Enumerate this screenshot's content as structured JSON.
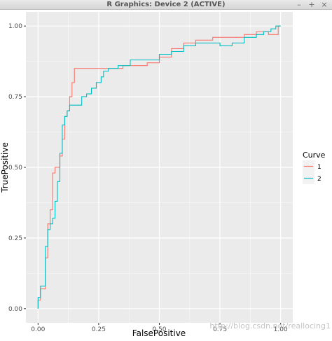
{
  "window": {
    "title": "R Graphics: Device 2 (ACTIVE)",
    "buttons": [
      "–",
      "+",
      "×"
    ]
  },
  "watermark": "http://blog.csdn.net/reallocing1",
  "colors": {
    "curve1": "#F8766D",
    "curve2": "#00BFC4",
    "panel": "#EBEBEB",
    "grid": "#FFFFFF"
  },
  "chart_data": {
    "type": "line",
    "title": "",
    "xlabel": "FalsePositive",
    "ylabel": "TruePositive",
    "xlim": [
      -0.05,
      1.05
    ],
    "ylim": [
      -0.05,
      1.05
    ],
    "x_ticks": [
      "0.00",
      "0.25",
      "0.50",
      "0.75",
      "1.00"
    ],
    "y_ticks": [
      "0.00",
      "0.25",
      "0.50",
      "0.75",
      "1.00"
    ],
    "grid": true,
    "legend": {
      "title": "Curve",
      "position": "right"
    },
    "series": [
      {
        "name": "1",
        "color": "#F8766D",
        "x": [
          0.0,
          0.0,
          0.01,
          0.01,
          0.03,
          0.03,
          0.04,
          0.04,
          0.05,
          0.05,
          0.06,
          0.06,
          0.07,
          0.07,
          0.09,
          0.09,
          0.1,
          0.1,
          0.11,
          0.11,
          0.12,
          0.12,
          0.13,
          0.13,
          0.14,
          0.14,
          0.15,
          0.15,
          0.35,
          0.35,
          0.45,
          0.45,
          0.5,
          0.5,
          0.55,
          0.55,
          0.6,
          0.6,
          0.65,
          0.65,
          0.72,
          0.72,
          0.85,
          0.85,
          0.9,
          0.9,
          0.95,
          0.95,
          0.99,
          0.99,
          1.0
        ],
        "y": [
          0.0,
          0.03,
          0.03,
          0.07,
          0.07,
          0.18,
          0.18,
          0.3,
          0.3,
          0.35,
          0.35,
          0.48,
          0.48,
          0.5,
          0.5,
          0.54,
          0.54,
          0.6,
          0.6,
          0.68,
          0.68,
          0.7,
          0.7,
          0.75,
          0.75,
          0.8,
          0.8,
          0.85,
          0.85,
          0.86,
          0.86,
          0.87,
          0.87,
          0.89,
          0.89,
          0.92,
          0.92,
          0.94,
          0.94,
          0.95,
          0.95,
          0.96,
          0.96,
          0.97,
          0.97,
          0.98,
          0.98,
          0.97,
          0.97,
          1.0,
          1.0
        ]
      },
      {
        "name": "2",
        "color": "#00BFC4",
        "x": [
          0.0,
          0.0,
          0.01,
          0.01,
          0.03,
          0.03,
          0.04,
          0.04,
          0.05,
          0.05,
          0.06,
          0.06,
          0.07,
          0.07,
          0.08,
          0.08,
          0.09,
          0.09,
          0.1,
          0.1,
          0.11,
          0.11,
          0.12,
          0.12,
          0.13,
          0.13,
          0.18,
          0.18,
          0.2,
          0.2,
          0.22,
          0.22,
          0.24,
          0.24,
          0.26,
          0.26,
          0.27,
          0.27,
          0.29,
          0.29,
          0.33,
          0.33,
          0.38,
          0.38,
          0.5,
          0.5,
          0.55,
          0.55,
          0.6,
          0.6,
          0.65,
          0.65,
          0.75,
          0.75,
          0.8,
          0.8,
          0.85,
          0.85,
          0.9,
          0.9,
          0.93,
          0.93,
          0.96,
          0.96,
          0.98,
          0.98,
          1.0
        ],
        "y": [
          0.0,
          0.04,
          0.04,
          0.08,
          0.08,
          0.22,
          0.22,
          0.28,
          0.28,
          0.3,
          0.3,
          0.32,
          0.32,
          0.38,
          0.38,
          0.45,
          0.45,
          0.55,
          0.55,
          0.65,
          0.65,
          0.68,
          0.68,
          0.7,
          0.7,
          0.72,
          0.72,
          0.75,
          0.75,
          0.76,
          0.76,
          0.78,
          0.78,
          0.8,
          0.8,
          0.82,
          0.82,
          0.84,
          0.84,
          0.85,
          0.85,
          0.86,
          0.86,
          0.88,
          0.88,
          0.9,
          0.9,
          0.91,
          0.91,
          0.93,
          0.93,
          0.94,
          0.94,
          0.93,
          0.93,
          0.94,
          0.94,
          0.96,
          0.96,
          0.97,
          0.97,
          0.98,
          0.98,
          0.99,
          0.99,
          1.0,
          1.0
        ]
      }
    ]
  }
}
